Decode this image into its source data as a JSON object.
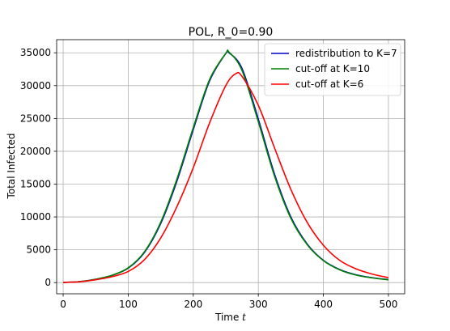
{
  "chart_data": {
    "type": "line",
    "title": "POL, R_0=0.90",
    "xlabel_main": "Time ",
    "xlabel_var": "t",
    "ylabel": "Total Infected",
    "xlim": [
      -10,
      525
    ],
    "ylim": [
      -1700,
      37000
    ],
    "xticks": [
      0,
      100,
      200,
      300,
      400,
      500
    ],
    "yticks": [
      0,
      5000,
      10000,
      15000,
      20000,
      25000,
      30000,
      35000
    ],
    "grid": true,
    "legend_position": "top-right",
    "series": [
      {
        "name": "redistribution to K=7",
        "color": "#0000cc",
        "x": [
          0,
          25,
          50,
          75,
          100,
          125,
          150,
          175,
          200,
          225,
          250,
          255,
          275,
          300,
          325,
          350,
          375,
          400,
          425,
          450,
          475,
          500
        ],
        "y": [
          30,
          150,
          500,
          1100,
          2200,
          4600,
          9000,
          15500,
          23300,
          30700,
          34900,
          35000,
          32600,
          24900,
          16500,
          10000,
          5900,
          3400,
          2000,
          1200,
          750,
          450
        ]
      },
      {
        "name": "cut-off at K=10",
        "color": "#008000",
        "x": [
          0,
          25,
          50,
          75,
          100,
          125,
          150,
          175,
          200,
          225,
          250,
          255,
          275,
          300,
          325,
          350,
          375,
          400,
          425,
          450,
          475,
          500
        ],
        "y": [
          30,
          150,
          510,
          1120,
          2250,
          4700,
          9200,
          15800,
          23600,
          30900,
          34900,
          35100,
          32300,
          24500,
          16200,
          9800,
          5800,
          3350,
          1950,
          1150,
          720,
          420
        ]
      },
      {
        "name": "cut-off at K=6",
        "color": "#ff0000",
        "x": [
          0,
          25,
          50,
          75,
          100,
          125,
          150,
          175,
          200,
          225,
          250,
          265,
          275,
          300,
          325,
          350,
          375,
          400,
          425,
          450,
          475,
          500
        ],
        "y": [
          30,
          130,
          430,
          900,
          1700,
          3500,
          6800,
          11600,
          17500,
          24300,
          30000,
          31800,
          31400,
          27000,
          20500,
          14200,
          9200,
          5700,
          3400,
          2100,
          1300,
          750
        ]
      }
    ]
  }
}
